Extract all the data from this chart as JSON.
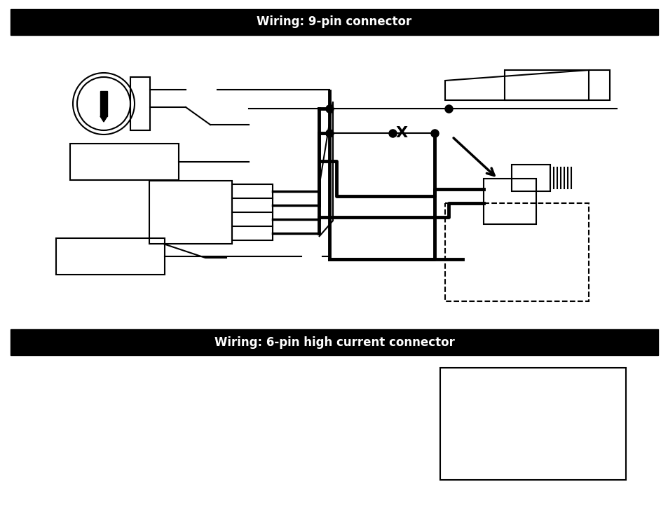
{
  "fig_width": 9.54,
  "fig_height": 7.38,
  "dpi": 100,
  "bg_color": "#ffffff",
  "header1_text": "Wiring: 9-pin connector",
  "header2_text": "Wiring: 6-pin high current connector",
  "header_bg": "#000000",
  "header_fg": "#ffffff"
}
